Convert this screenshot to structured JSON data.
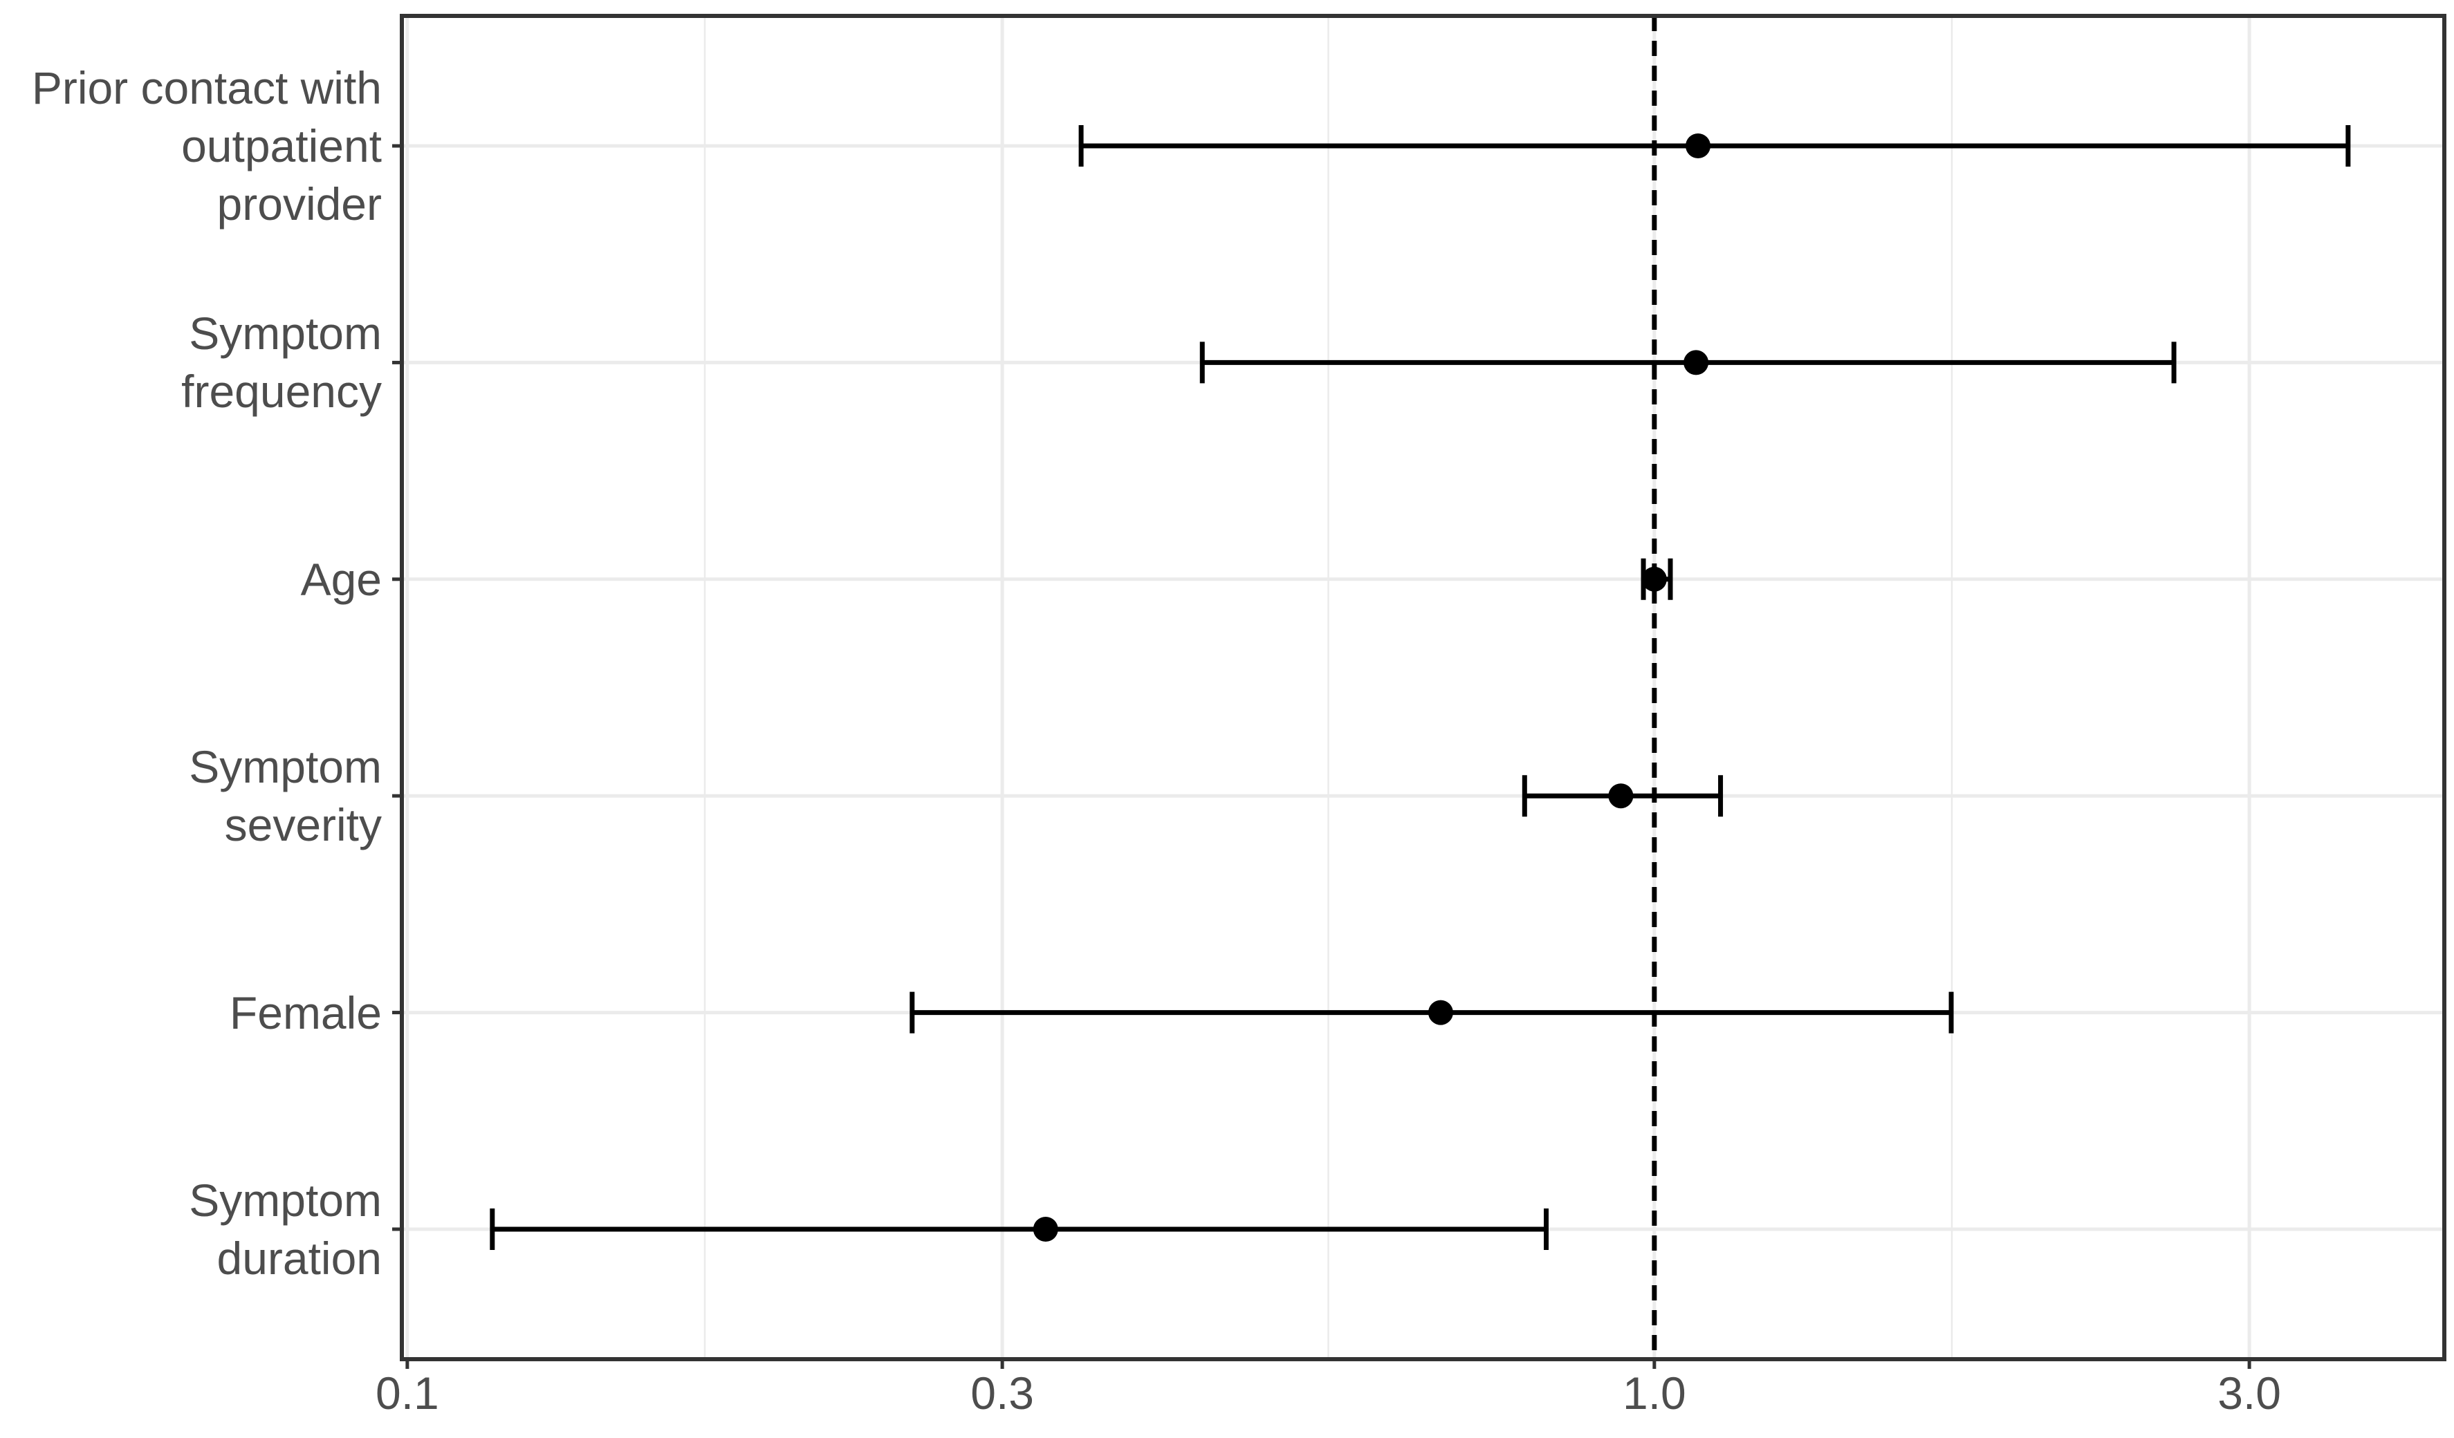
{
  "chart_data": {
    "type": "forest",
    "categories": [
      "Prior contact with\noutpatient\nprovider",
      "Symptom\nfrequency",
      "Age",
      "Symptom\nseverity",
      "Female",
      "Symptom\nduration"
    ],
    "values": [
      1.084,
      1.08,
      1.0,
      0.94,
      0.674,
      0.325
    ],
    "lower": [
      0.347,
      0.434,
      0.98,
      0.787,
      0.254,
      0.117
    ],
    "upper": [
      3.6,
      2.61,
      1.03,
      1.13,
      1.73,
      0.819
    ],
    "color": "#000000",
    "xlim": [
      0.099,
      4.3
    ],
    "log_x": true,
    "xticks": [
      0.1,
      0.3,
      {
        "value": 1,
        "label": "1.0"
      },
      {
        "value": 3,
        "label": "3.0"
      }
    ],
    "reference_line": 1,
    "grid": true
  }
}
